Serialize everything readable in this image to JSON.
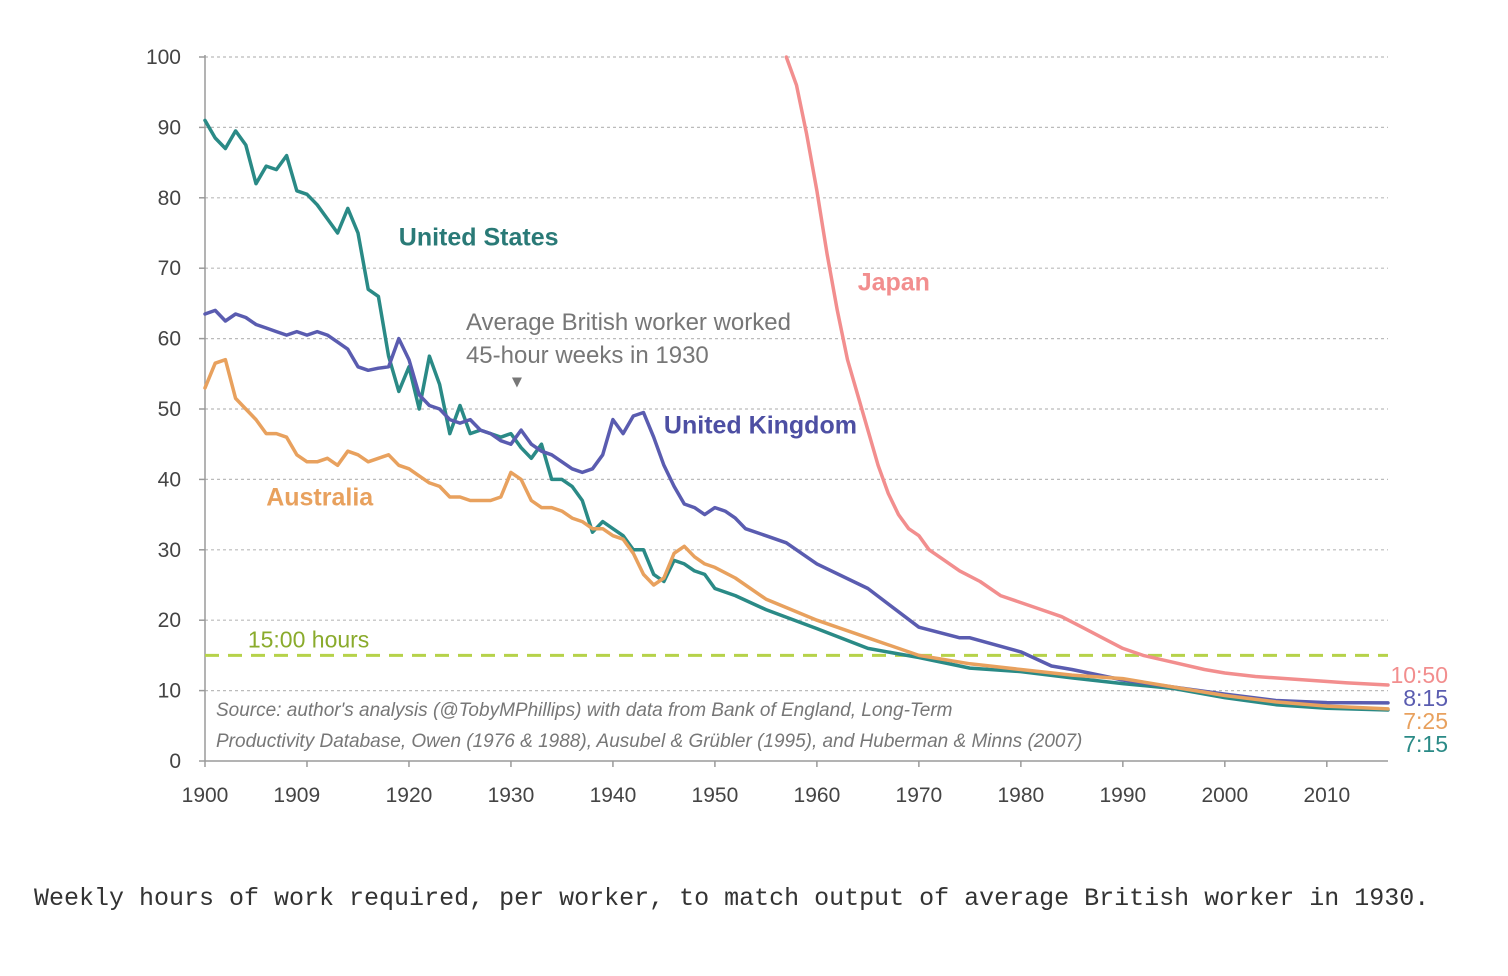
{
  "chart_data": {
    "type": "line",
    "title": "",
    "xlabel": "",
    "ylabel": "",
    "xlim": [
      1900,
      2016
    ],
    "ylim": [
      0,
      100
    ],
    "y_ticks": [
      0,
      10,
      20,
      30,
      40,
      50,
      60,
      70,
      80,
      90,
      100
    ],
    "x_ticks": [
      1900,
      1909,
      1920,
      1930,
      1940,
      1950,
      1960,
      1970,
      1980,
      1990,
      2000,
      2010
    ],
    "grid": "horizontal dashed",
    "series": [
      {
        "name": "Japan",
        "color": "#f28e8e",
        "end_label": "10:50",
        "points": [
          [
            1957,
            100
          ],
          [
            1958,
            96
          ],
          [
            1959,
            89
          ],
          [
            1960,
            81
          ],
          [
            1961,
            72
          ],
          [
            1962,
            64
          ],
          [
            1963,
            57
          ],
          [
            1964,
            52
          ],
          [
            1965,
            47
          ],
          [
            1966,
            42
          ],
          [
            1967,
            38
          ],
          [
            1968,
            35
          ],
          [
            1969,
            33
          ],
          [
            1970,
            32
          ],
          [
            1971,
            30
          ],
          [
            1972,
            29
          ],
          [
            1974,
            27
          ],
          [
            1976,
            25.5
          ],
          [
            1978,
            23.5
          ],
          [
            1980,
            22.5
          ],
          [
            1982,
            21.5
          ],
          [
            1984,
            20.5
          ],
          [
            1986,
            19
          ],
          [
            1988,
            17.5
          ],
          [
            1990,
            16
          ],
          [
            1992,
            15
          ],
          [
            1995,
            14
          ],
          [
            1998,
            13
          ],
          [
            2000,
            12.5
          ],
          [
            2003,
            12
          ],
          [
            2006,
            11.7
          ],
          [
            2009,
            11.4
          ],
          [
            2012,
            11.1
          ],
          [
            2016,
            10.8
          ]
        ]
      },
      {
        "name": "United States",
        "color": "#2a8a86",
        "end_label": "7:15",
        "points": [
          [
            1900,
            91
          ],
          [
            1901,
            88.5
          ],
          [
            1902,
            87
          ],
          [
            1903,
            89.5
          ],
          [
            1904,
            87.5
          ],
          [
            1905,
            82
          ],
          [
            1906,
            84.5
          ],
          [
            1907,
            84
          ],
          [
            1908,
            86
          ],
          [
            1909,
            81
          ],
          [
            1910,
            80.5
          ],
          [
            1911,
            79
          ],
          [
            1912,
            77
          ],
          [
            1913,
            75
          ],
          [
            1914,
            78.5
          ],
          [
            1915,
            75
          ],
          [
            1916,
            67
          ],
          [
            1917,
            66
          ],
          [
            1918,
            57.5
          ],
          [
            1919,
            52.5
          ],
          [
            1920,
            56
          ],
          [
            1921,
            50
          ],
          [
            1922,
            57.5
          ],
          [
            1923,
            53.5
          ],
          [
            1924,
            46.5
          ],
          [
            1925,
            50.5
          ],
          [
            1926,
            46.5
          ],
          [
            1927,
            47
          ],
          [
            1928,
            46.5
          ],
          [
            1929,
            46
          ],
          [
            1930,
            46.5
          ],
          [
            1931,
            44.5
          ],
          [
            1932,
            43
          ],
          [
            1933,
            45
          ],
          [
            1934,
            40
          ],
          [
            1935,
            40
          ],
          [
            1936,
            39
          ],
          [
            1937,
            37
          ],
          [
            1938,
            32.5
          ],
          [
            1939,
            34
          ],
          [
            1940,
            33
          ],
          [
            1941,
            32
          ],
          [
            1942,
            30
          ],
          [
            1943,
            30
          ],
          [
            1944,
            26.5
          ],
          [
            1945,
            25.5
          ],
          [
            1946,
            28.5
          ],
          [
            1947,
            28
          ],
          [
            1948,
            27
          ],
          [
            1949,
            26.5
          ],
          [
            1950,
            24.5
          ],
          [
            1952,
            23.5
          ],
          [
            1955,
            21.5
          ],
          [
            1960,
            18.8
          ],
          [
            1965,
            16
          ],
          [
            1970,
            14.7
          ],
          [
            1975,
            13.2
          ],
          [
            1980,
            12.7
          ],
          [
            1985,
            11.8
          ],
          [
            1990,
            11
          ],
          [
            1995,
            10.3
          ],
          [
            2000,
            9
          ],
          [
            2005,
            8
          ],
          [
            2010,
            7.5
          ],
          [
            2016,
            7.25
          ]
        ]
      },
      {
        "name": "United Kingdom",
        "color": "#5a5cb0",
        "end_label": "8:15",
        "points": [
          [
            1900,
            63.5
          ],
          [
            1901,
            64
          ],
          [
            1902,
            62.5
          ],
          [
            1903,
            63.5
          ],
          [
            1904,
            63
          ],
          [
            1905,
            62
          ],
          [
            1906,
            61.5
          ],
          [
            1907,
            61
          ],
          [
            1908,
            60.5
          ],
          [
            1909,
            61
          ],
          [
            1910,
            60.5
          ],
          [
            1911,
            61
          ],
          [
            1912,
            60.5
          ],
          [
            1913,
            59.5
          ],
          [
            1914,
            58.5
          ],
          [
            1915,
            56
          ],
          [
            1916,
            55.5
          ],
          [
            1917,
            55.8
          ],
          [
            1918,
            56
          ],
          [
            1919,
            60
          ],
          [
            1920,
            57
          ],
          [
            1921,
            52
          ],
          [
            1922,
            50.5
          ],
          [
            1923,
            50
          ],
          [
            1924,
            48.5
          ],
          [
            1925,
            48
          ],
          [
            1926,
            48.5
          ],
          [
            1927,
            47
          ],
          [
            1928,
            46.5
          ],
          [
            1929,
            45.5
          ],
          [
            1930,
            45
          ],
          [
            1931,
            47
          ],
          [
            1932,
            45
          ],
          [
            1933,
            44
          ],
          [
            1934,
            43.5
          ],
          [
            1935,
            42.5
          ],
          [
            1936,
            41.5
          ],
          [
            1937,
            41
          ],
          [
            1938,
            41.5
          ],
          [
            1939,
            43.5
          ],
          [
            1940,
            48.5
          ],
          [
            1941,
            46.5
          ],
          [
            1942,
            49
          ],
          [
            1943,
            49.5
          ],
          [
            1944,
            46
          ],
          [
            1945,
            42
          ],
          [
            1946,
            39
          ],
          [
            1947,
            36.5
          ],
          [
            1948,
            36
          ],
          [
            1949,
            35
          ],
          [
            1950,
            36
          ],
          [
            1951,
            35.5
          ],
          [
            1952,
            34.5
          ],
          [
            1953,
            33
          ],
          [
            1955,
            32
          ],
          [
            1957,
            31
          ],
          [
            1960,
            28
          ],
          [
            1965,
            24.5
          ],
          [
            1970,
            19
          ],
          [
            1974,
            17.5
          ],
          [
            1975,
            17.5
          ],
          [
            1980,
            15.5
          ],
          [
            1983,
            13.5
          ],
          [
            1985,
            13
          ],
          [
            1990,
            11.5
          ],
          [
            1995,
            10.5
          ],
          [
            2000,
            9.5
          ],
          [
            2005,
            8.6
          ],
          [
            2010,
            8.3
          ],
          [
            2016,
            8.25
          ]
        ]
      },
      {
        "name": "Australia",
        "color": "#e8a15e",
        "end_label": "7:25",
        "points": [
          [
            1900,
            53
          ],
          [
            1901,
            56.5
          ],
          [
            1902,
            57
          ],
          [
            1903,
            51.5
          ],
          [
            1904,
            50
          ],
          [
            1905,
            48.5
          ],
          [
            1906,
            46.5
          ],
          [
            1907,
            46.5
          ],
          [
            1908,
            46
          ],
          [
            1909,
            43.5
          ],
          [
            1910,
            42.5
          ],
          [
            1911,
            42.5
          ],
          [
            1912,
            43
          ],
          [
            1913,
            42
          ],
          [
            1914,
            44
          ],
          [
            1915,
            43.5
          ],
          [
            1916,
            42.5
          ],
          [
            1917,
            43
          ],
          [
            1918,
            43.5
          ],
          [
            1919,
            42
          ],
          [
            1920,
            41.5
          ],
          [
            1921,
            40.5
          ],
          [
            1922,
            39.5
          ],
          [
            1923,
            39
          ],
          [
            1924,
            37.5
          ],
          [
            1925,
            37.5
          ],
          [
            1926,
            37
          ],
          [
            1927,
            37
          ],
          [
            1928,
            37
          ],
          [
            1929,
            37.5
          ],
          [
            1930,
            41
          ],
          [
            1931,
            40
          ],
          [
            1932,
            37
          ],
          [
            1933,
            36
          ],
          [
            1934,
            36
          ],
          [
            1935,
            35.5
          ],
          [
            1936,
            34.5
          ],
          [
            1937,
            34
          ],
          [
            1938,
            33
          ],
          [
            1939,
            33
          ],
          [
            1940,
            32
          ],
          [
            1941,
            31.5
          ],
          [
            1942,
            29.5
          ],
          [
            1943,
            26.5
          ],
          [
            1944,
            25
          ],
          [
            1945,
            26
          ],
          [
            1946,
            29.5
          ],
          [
            1947,
            30.5
          ],
          [
            1948,
            29
          ],
          [
            1949,
            28
          ],
          [
            1950,
            27.5
          ],
          [
            1952,
            26
          ],
          [
            1955,
            23
          ],
          [
            1960,
            20
          ],
          [
            1965,
            17.5
          ],
          [
            1970,
            15
          ],
          [
            1975,
            13.8
          ],
          [
            1980,
            13
          ],
          [
            1985,
            12.2
          ],
          [
            1990,
            11.7
          ],
          [
            1995,
            10.5
          ],
          [
            2000,
            9.3
          ],
          [
            2005,
            8.4
          ],
          [
            2010,
            7.8
          ],
          [
            2016,
            7.4
          ]
        ]
      }
    ],
    "series_labels": [
      {
        "name": "United States",
        "text": "United States",
        "color": "#2a7a77",
        "x": 1919,
        "y": 73.2
      },
      {
        "name": "Japan",
        "text": "Japan",
        "color": "#f28e8e",
        "x": 1964,
        "y": 66.8
      },
      {
        "name": "United Kingdom",
        "text": "United Kingdom",
        "color": "#4d4fa3",
        "x": 1945,
        "y": 46.5
      },
      {
        "name": "Australia",
        "text": "Australia",
        "color": "#e8a15e",
        "x": 1906,
        "y": 36.3
      }
    ],
    "reference_line": {
      "y": 15,
      "label": "15:00 hours",
      "color": "#b6d24a"
    },
    "annotation": {
      "lines": [
        "Average British worker worked",
        "45-hour weeks in 1930"
      ],
      "x": 1930,
      "y": 48.5
    },
    "source": [
      "Source: author's analysis (@TobyMPhillips) with data from Bank of England, Long-Term",
      "Productivity Database, Owen (1976 & 1988), Ausubel & Grübler (1995), and Huberman & Minns (2007)"
    ]
  },
  "caption": "Weekly hours of work required, per worker, to match output of average British worker in 1930."
}
